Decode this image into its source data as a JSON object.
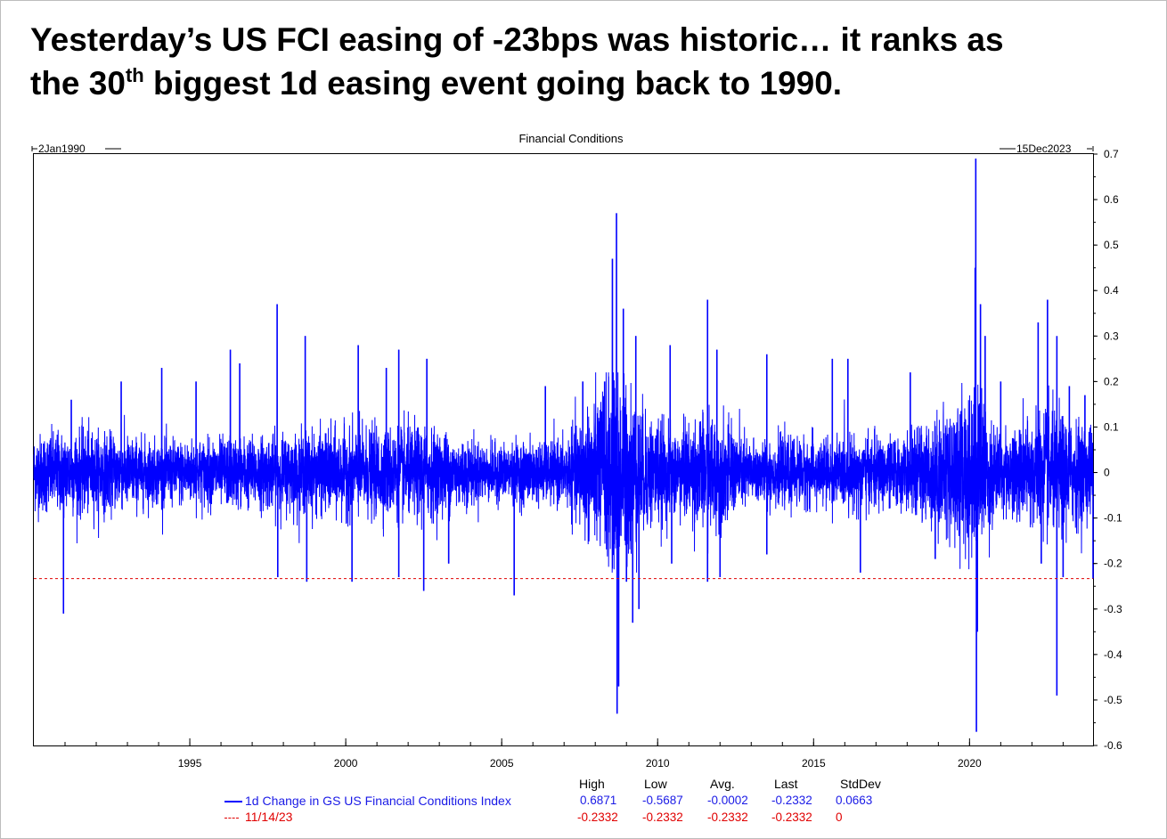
{
  "headline": {
    "line1": "Yesterday’s US FCI easing of -23bps was historic… it ranks as",
    "line2_pre": "the 30",
    "line2_sup": "th",
    "line2_post": " biggest 1d easing event going back to 1990."
  },
  "chart_data": {
    "type": "line",
    "title": "Financial Conditions",
    "start_label": "2Jan1990",
    "end_label": "15Dec2023",
    "x_range": [
      1990.0,
      2023.96
    ],
    "ylim": [
      -0.6,
      0.7
    ],
    "y_ticks": [
      0.7,
      0.6,
      0.5,
      0.4,
      0.3,
      0.2,
      0.1,
      0,
      -0.1,
      -0.2,
      -0.3,
      -0.4,
      -0.5,
      -0.6
    ],
    "x_ticks": [
      1995,
      2000,
      2005,
      2010,
      2015,
      2020
    ],
    "y_axis_side": "right",
    "grid": false,
    "legend_position": "bottom",
    "series": [
      {
        "name": "1d Change in GS US Financial Conditions Index",
        "color": "#0000ff",
        "style": "solid",
        "stats": {
          "high": "0.6871",
          "low": "-0.5687",
          "avg": "-0.0002",
          "last": "-0.2332",
          "stddev": "0.0663"
        },
        "volatility_profile": [
          {
            "x": 1990.0,
            "v": 0.055
          },
          {
            "x": 1991.5,
            "v": 0.06
          },
          {
            "x": 1994.0,
            "v": 0.045
          },
          {
            "x": 1997.0,
            "v": 0.05
          },
          {
            "x": 2000.0,
            "v": 0.06
          },
          {
            "x": 2002.5,
            "v": 0.065
          },
          {
            "x": 2004.5,
            "v": 0.04
          },
          {
            "x": 2007.0,
            "v": 0.045
          },
          {
            "x": 2008.7,
            "v": 0.15
          },
          {
            "x": 2009.5,
            "v": 0.09
          },
          {
            "x": 2010.5,
            "v": 0.06
          },
          {
            "x": 2011.7,
            "v": 0.085
          },
          {
            "x": 2013.0,
            "v": 0.045
          },
          {
            "x": 2016.0,
            "v": 0.05
          },
          {
            "x": 2018.0,
            "v": 0.05
          },
          {
            "x": 2020.2,
            "v": 0.12
          },
          {
            "x": 2021.0,
            "v": 0.055
          },
          {
            "x": 2022.5,
            "v": 0.09
          },
          {
            "x": 2023.96,
            "v": 0.065
          }
        ],
        "spikes": [
          {
            "x": 1990.95,
            "y": -0.31
          },
          {
            "x": 1991.2,
            "y": 0.16
          },
          {
            "x": 1992.8,
            "y": 0.2
          },
          {
            "x": 1994.1,
            "y": 0.23
          },
          {
            "x": 1995.2,
            "y": 0.2
          },
          {
            "x": 1996.3,
            "y": 0.27
          },
          {
            "x": 1996.6,
            "y": 0.24
          },
          {
            "x": 1997.8,
            "y": 0.37
          },
          {
            "x": 1997.82,
            "y": -0.23
          },
          {
            "x": 1998.7,
            "y": 0.3
          },
          {
            "x": 1998.75,
            "y": -0.24
          },
          {
            "x": 2000.2,
            "y": -0.24
          },
          {
            "x": 2000.4,
            "y": 0.28
          },
          {
            "x": 2001.3,
            "y": 0.23
          },
          {
            "x": 2001.7,
            "y": -0.23
          },
          {
            "x": 2001.7,
            "y": 0.27
          },
          {
            "x": 2002.5,
            "y": -0.26
          },
          {
            "x": 2002.6,
            "y": 0.25
          },
          {
            "x": 2003.3,
            "y": -0.2
          },
          {
            "x": 2005.4,
            "y": -0.27
          },
          {
            "x": 2006.4,
            "y": 0.19
          },
          {
            "x": 2007.6,
            "y": 0.2
          },
          {
            "x": 2008.3,
            "y": 0.2
          },
          {
            "x": 2008.55,
            "y": 0.47
          },
          {
            "x": 2008.68,
            "y": 0.57
          },
          {
            "x": 2008.7,
            "y": -0.53
          },
          {
            "x": 2008.75,
            "y": -0.47
          },
          {
            "x": 2008.9,
            "y": 0.36
          },
          {
            "x": 2009.0,
            "y": -0.24
          },
          {
            "x": 2009.2,
            "y": -0.33
          },
          {
            "x": 2009.3,
            "y": 0.3
          },
          {
            "x": 2009.4,
            "y": -0.3
          },
          {
            "x": 2010.4,
            "y": 0.28
          },
          {
            "x": 2010.45,
            "y": -0.2
          },
          {
            "x": 2011.6,
            "y": 0.38
          },
          {
            "x": 2011.6,
            "y": -0.24
          },
          {
            "x": 2011.9,
            "y": 0.27
          },
          {
            "x": 2012.0,
            "y": -0.23
          },
          {
            "x": 2013.5,
            "y": 0.26
          },
          {
            "x": 2013.5,
            "y": -0.18
          },
          {
            "x": 2015.6,
            "y": 0.25
          },
          {
            "x": 2016.1,
            "y": 0.25
          },
          {
            "x": 2016.5,
            "y": -0.22
          },
          {
            "x": 2018.1,
            "y": 0.22
          },
          {
            "x": 2018.9,
            "y": -0.19
          },
          {
            "x": 2020.18,
            "y": 0.45
          },
          {
            "x": 2020.2,
            "y": 0.69
          },
          {
            "x": 2020.22,
            "y": -0.57
          },
          {
            "x": 2020.25,
            "y": -0.35
          },
          {
            "x": 2020.35,
            "y": 0.37
          },
          {
            "x": 2020.5,
            "y": 0.3
          },
          {
            "x": 2021.0,
            "y": 0.2
          },
          {
            "x": 2022.2,
            "y": 0.33
          },
          {
            "x": 2022.3,
            "y": -0.2
          },
          {
            "x": 2022.5,
            "y": 0.38
          },
          {
            "x": 2022.8,
            "y": 0.3
          },
          {
            "x": 2022.8,
            "y": -0.49
          },
          {
            "x": 2023.0,
            "y": -0.23
          },
          {
            "x": 2023.2,
            "y": 0.19
          },
          {
            "x": 2023.7,
            "y": 0.17
          },
          {
            "x": 2023.96,
            "y": -0.2332
          }
        ]
      },
      {
        "name": "11/14/23",
        "color": "#e00000",
        "style": "dashed",
        "y": -0.2332,
        "stats": {
          "high": "-0.2332",
          "low": "-0.2332",
          "avg": "-0.2332",
          "last": "-0.2332",
          "stddev": "0"
        }
      }
    ],
    "stat_headers": [
      "High",
      "Low",
      "Avg.",
      "Last",
      "StdDev"
    ]
  }
}
